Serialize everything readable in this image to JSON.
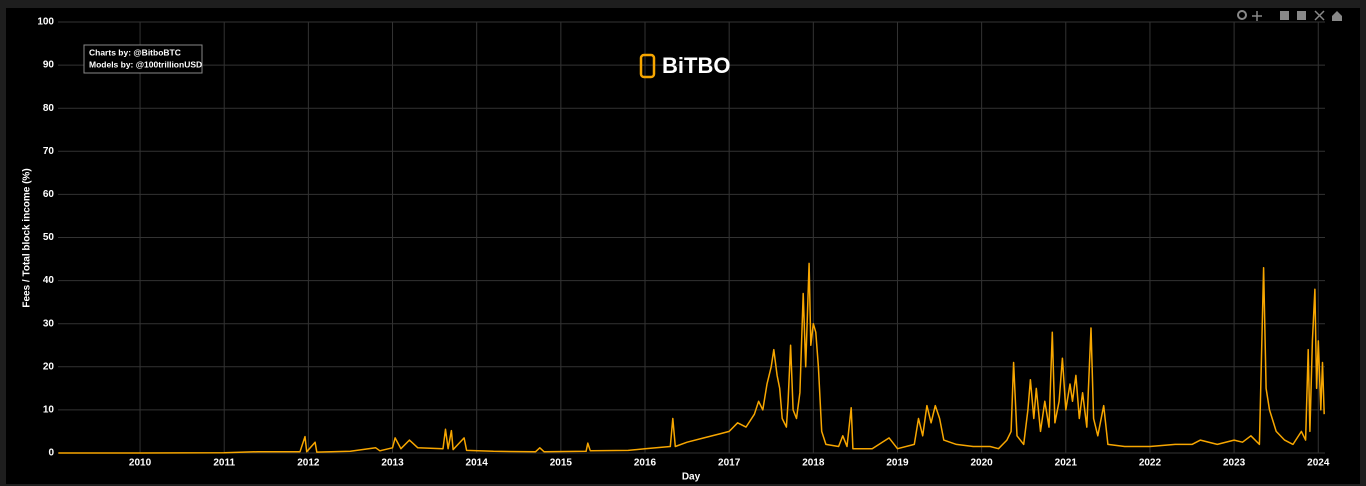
{
  "chart_data": {
    "type": "line",
    "y_label": "Fees / Total block income (%)",
    "x_label": "Day",
    "annotations": [
      "Charts by: @BitboBTC",
      "Models by: @100trillionUSD"
    ],
    "logo": "BiTBO",
    "grid": true,
    "xlim": [
      2009.025,
      2024.08
    ],
    "ylim": [
      0,
      100
    ],
    "xticks": [
      2010,
      2011,
      2012,
      2013,
      2014,
      2015,
      2016,
      2017,
      2018,
      2019,
      2020,
      2021,
      2022,
      2023,
      2024
    ],
    "yticks": [
      0,
      10,
      20,
      30,
      40,
      50,
      60,
      70,
      80,
      90,
      100
    ],
    "x": [
      2009.03,
      2010,
      2011,
      2011.4,
      2011.9,
      2011.96,
      2011.98,
      2012.08,
      2012.1,
      2012.5,
      2012.8,
      2012.85,
      2013.0,
      2013.03,
      2013.1,
      2013.2,
      2013.3,
      2013.6,
      2013.63,
      2013.66,
      2013.7,
      2013.72,
      2013.85,
      2013.88,
      2014.2,
      2014.7,
      2014.75,
      2014.8,
      2015.3,
      2015.32,
      2015.35,
      2015.8,
      2016.0,
      2016.3,
      2016.33,
      2016.36,
      2016.5,
      2016.7,
      2016.9,
      2017.0,
      2017.1,
      2017.2,
      2017.3,
      2017.35,
      2017.4,
      2017.45,
      2017.5,
      2017.53,
      2017.57,
      2017.6,
      2017.63,
      2017.68,
      2017.7,
      2017.73,
      2017.76,
      2017.8,
      2017.84,
      2017.88,
      2017.91,
      2017.95,
      2017.97,
      2018.0,
      2018.03,
      2018.06,
      2018.1,
      2018.15,
      2018.3,
      2018.35,
      2018.4,
      2018.45,
      2018.47,
      2018.7,
      2018.9,
      2019.0,
      2019.2,
      2019.25,
      2019.3,
      2019.35,
      2019.4,
      2019.45,
      2019.5,
      2019.55,
      2019.7,
      2019.9,
      2020.1,
      2020.2,
      2020.3,
      2020.35,
      2020.38,
      2020.42,
      2020.5,
      2020.55,
      2020.58,
      2020.62,
      2020.65,
      2020.7,
      2020.75,
      2020.8,
      2020.84,
      2020.87,
      2020.92,
      2020.96,
      2021.0,
      2021.05,
      2021.08,
      2021.12,
      2021.16,
      2021.2,
      2021.25,
      2021.3,
      2021.33,
      2021.38,
      2021.45,
      2021.5,
      2021.7,
      2022.0,
      2022.3,
      2022.5,
      2022.6,
      2022.8,
      2023.0,
      2023.1,
      2023.2,
      2023.3,
      2023.35,
      2023.38,
      2023.42,
      2023.5,
      2023.6,
      2023.7,
      2023.8,
      2023.85,
      2023.88,
      2023.9,
      2023.93,
      2023.96,
      2023.98,
      2024.0,
      2024.03,
      2024.05,
      2024.07
    ],
    "series": [
      {
        "name": "Fees / Total block income (%)",
        "color": "#f7a600",
        "values": [
          0,
          0,
          0.05,
          0.3,
          0.3,
          3.8,
          0.3,
          2.5,
          0.2,
          0.4,
          1.2,
          0.5,
          1.2,
          3.5,
          1.0,
          3.0,
          1.2,
          1.0,
          5.5,
          1,
          5.2,
          0.8,
          3.5,
          0.6,
          0.4,
          0.3,
          1.2,
          0.3,
          0.4,
          2.3,
          0.5,
          0.6,
          1.0,
          1.5,
          8.0,
          1.5,
          2.5,
          3.5,
          4.5,
          5,
          7,
          6,
          9,
          12,
          10,
          16,
          20,
          24,
          18,
          15,
          8,
          6,
          12,
          25,
          10,
          8,
          14,
          37,
          20,
          44,
          25,
          30,
          28,
          20,
          5,
          2,
          1.5,
          4,
          1.5,
          10.5,
          1,
          1,
          3.5,
          1,
          2,
          8,
          4,
          11,
          7,
          11,
          8,
          3,
          2,
          1.5,
          1.5,
          1,
          3,
          5,
          21,
          4,
          2,
          10,
          17,
          8,
          15,
          5,
          12,
          6,
          28,
          7,
          12,
          22,
          10,
          16,
          12,
          18,
          8,
          14,
          6,
          29,
          8,
          4,
          11,
          2,
          1.5,
          1.5,
          2,
          2,
          3,
          2,
          3,
          2.5,
          4,
          2,
          43,
          15,
          10,
          5,
          3,
          2,
          5,
          3,
          24,
          5,
          26,
          38,
          15,
          26,
          10,
          21,
          9
        ]
      }
    ]
  }
}
